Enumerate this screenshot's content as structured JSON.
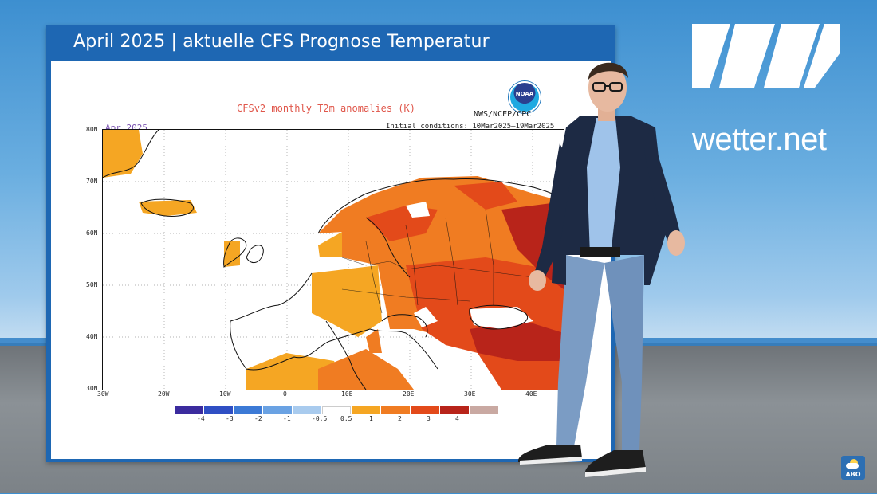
{
  "broadcast": {
    "board_title": "April 2025 | aktuelle CFS Prognose Temperatur",
    "logo_text": "wetter.net",
    "abo_label": "ABO",
    "abo_icon": "weather-sun-cloud-icon"
  },
  "map": {
    "title": "CFSv2 monthly T2m anomalies (K)",
    "month": "Apr 2025",
    "initial_conditions": "Initial conditions: 10Mar2025–19Mar2025",
    "agency": "NWS/NCEP/CPC",
    "noaa_logo_text": "NOAA",
    "lat_labels": [
      "80N",
      "70N",
      "60N",
      "50N",
      "40N",
      "30N"
    ],
    "lon_labels": [
      "30W",
      "20W",
      "10W",
      "0",
      "10E",
      "20E",
      "30E",
      "40E"
    ],
    "colorbar": {
      "ticks": [
        "-4",
        "-3",
        "-2",
        "-1",
        "-0.5",
        "0.5",
        "1",
        "2",
        "3",
        "4"
      ],
      "colors": [
        "#3b2b9e",
        "#2f4fc4",
        "#3c7ad6",
        "#6aa2e3",
        "#a9cbee",
        "#ffffff",
        "#f5a623",
        "#f07c22",
        "#e34a1a",
        "#b8241a",
        "#c9a9a2"
      ]
    }
  }
}
